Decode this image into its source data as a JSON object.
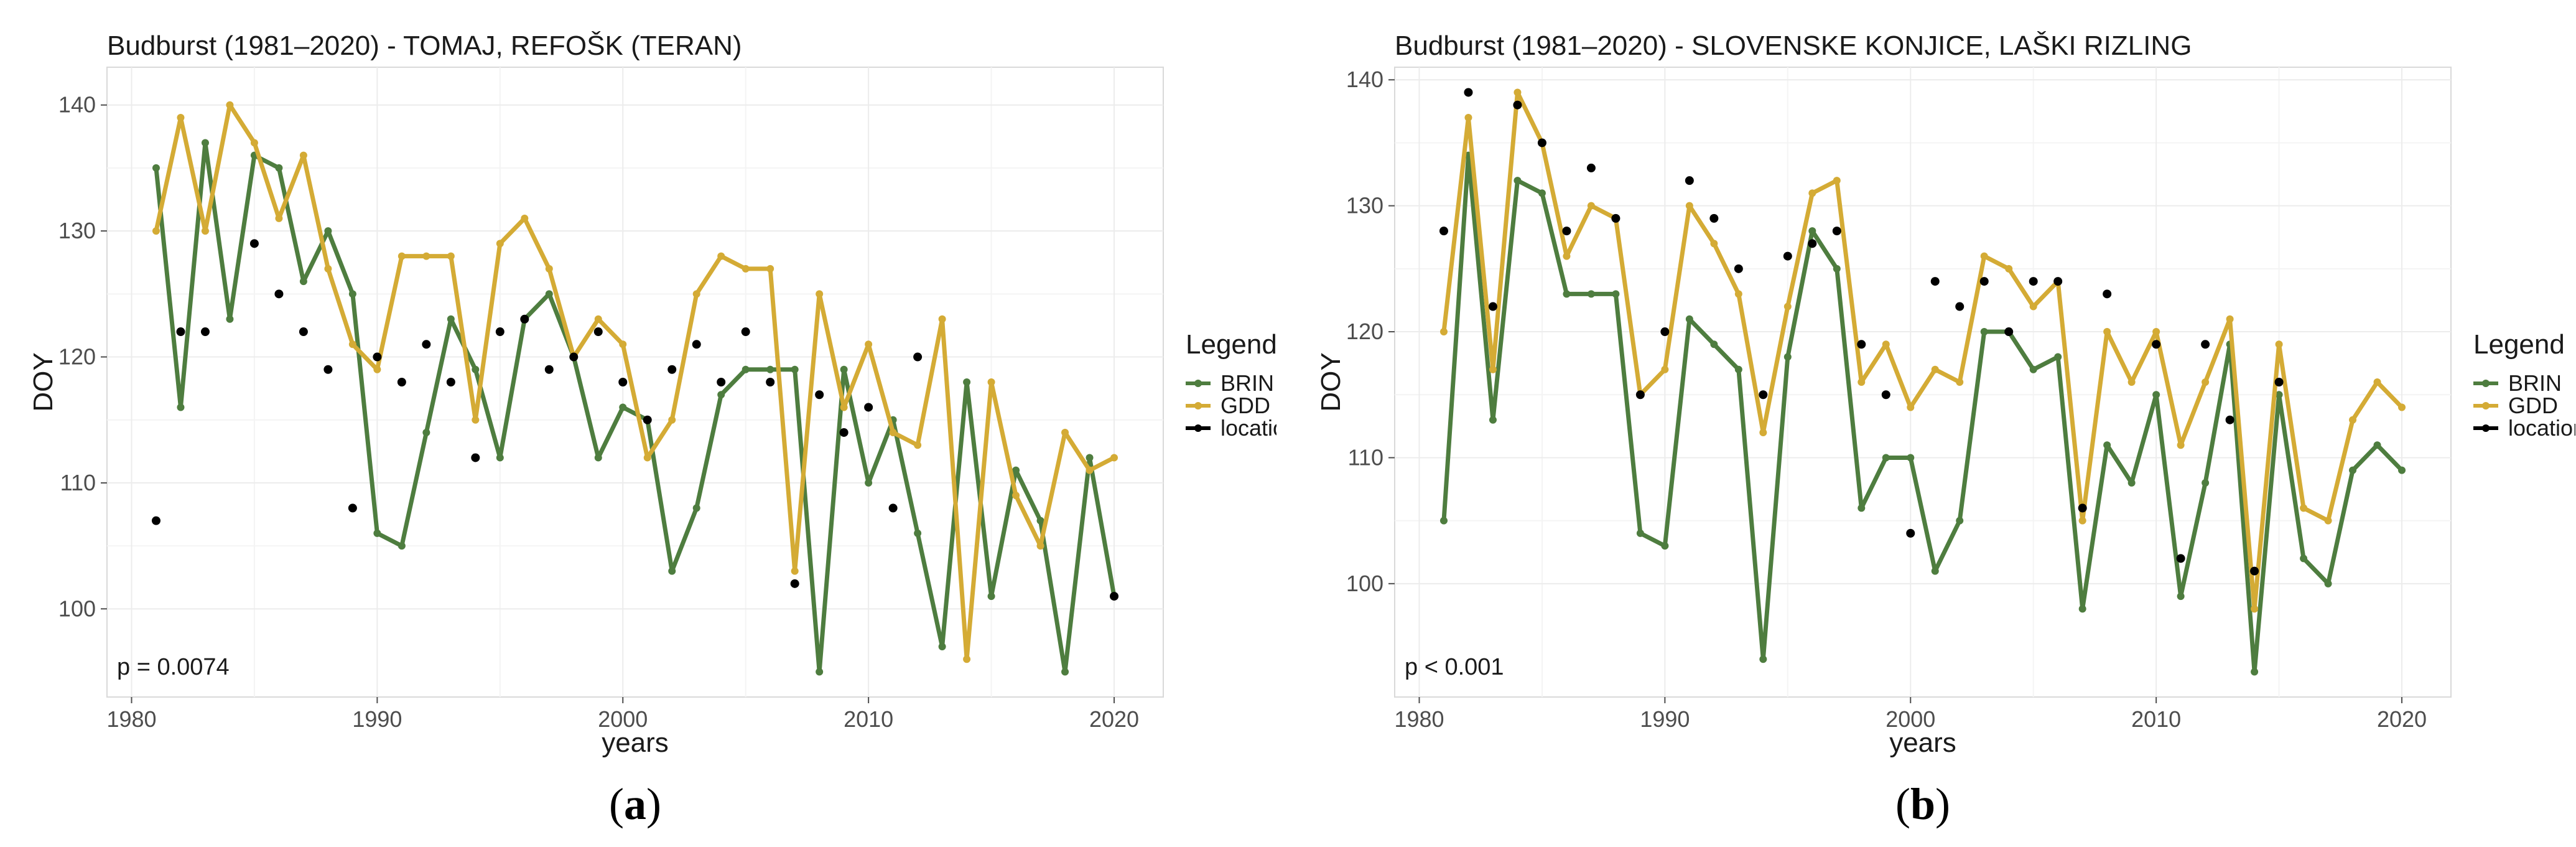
{
  "colors": {
    "brin": "#4e7d3f",
    "gdd": "#d4ab35",
    "location": "#000000",
    "grid": "#ececec",
    "frame": "#d9d9d9"
  },
  "chart_data": [
    {
      "type": "line",
      "panel_label": "a",
      "title": "Budburst (1981–2020) - TOMAJ, REFOŠK (TERAN)",
      "xlabel": "years",
      "ylabel": "DOY",
      "xlim": [
        1979,
        2022
      ],
      "ylim": [
        93,
        143
      ],
      "xticks": [
        1980,
        1990,
        2000,
        2010,
        2020
      ],
      "yticks": [
        100,
        110,
        120,
        130,
        140
      ],
      "annotation": "p = 0.0074",
      "legend_title": "Legend",
      "legend_position": "right",
      "grid": true,
      "x": [
        1981,
        1982,
        1983,
        1984,
        1985,
        1986,
        1987,
        1988,
        1989,
        1990,
        1991,
        1992,
        1993,
        1994,
        1995,
        1996,
        1997,
        1998,
        1999,
        2000,
        2001,
        2002,
        2003,
        2004,
        2005,
        2006,
        2007,
        2008,
        2009,
        2010,
        2011,
        2012,
        2013,
        2014,
        2015,
        2016,
        2017,
        2018,
        2019,
        2020
      ],
      "series": [
        {
          "name": "BRIN",
          "style": "line",
          "values": [
            135,
            116,
            137,
            123,
            136,
            135,
            126,
            130,
            125,
            106,
            105,
            114,
            123,
            119,
            112,
            123,
            125,
            120,
            112,
            116,
            115,
            103,
            108,
            117,
            119,
            119,
            119,
            95,
            119,
            110,
            115,
            106,
            97,
            118,
            101,
            111,
            107,
            95,
            112,
            101
          ]
        },
        {
          "name": "GDD",
          "style": "line",
          "values": [
            130,
            139,
            130,
            140,
            137,
            131,
            136,
            127,
            121,
            119,
            128,
            128,
            128,
            115,
            129,
            131,
            127,
            120,
            123,
            121,
            112,
            115,
            125,
            128,
            127,
            127,
            103,
            125,
            116,
            121,
            114,
            113,
            123,
            96,
            118,
            109,
            105,
            114,
            111,
            112
          ]
        },
        {
          "name": "location",
          "style": "points",
          "values": [
            107,
            122,
            122,
            null,
            129,
            125,
            122,
            119,
            108,
            120,
            118,
            121,
            118,
            112,
            122,
            123,
            119,
            120,
            122,
            118,
            115,
            119,
            121,
            118,
            122,
            118,
            102,
            117,
            114,
            116,
            108,
            120,
            null,
            null,
            null,
            null,
            null,
            null,
            null,
            101
          ]
        }
      ]
    },
    {
      "type": "line",
      "panel_label": "b",
      "title": "Budburst (1981–2020) - SLOVENSKE KONJICE, LAŠKI RIZLING",
      "xlabel": "years",
      "ylabel": "DOY",
      "xlim": [
        1979,
        2022
      ],
      "ylim": [
        91,
        141
      ],
      "xticks": [
        1980,
        1990,
        2000,
        2010,
        2020
      ],
      "yticks": [
        100,
        110,
        120,
        130,
        140
      ],
      "annotation": "p < 0.001",
      "legend_title": "Legend",
      "legend_position": "right",
      "grid": true,
      "x": [
        1981,
        1982,
        1983,
        1984,
        1985,
        1986,
        1987,
        1988,
        1989,
        1990,
        1991,
        1992,
        1993,
        1994,
        1995,
        1996,
        1997,
        1998,
        1999,
        2000,
        2001,
        2002,
        2003,
        2004,
        2005,
        2006,
        2007,
        2008,
        2009,
        2010,
        2011,
        2012,
        2013,
        2014,
        2015,
        2016,
        2017,
        2018,
        2019,
        2020
      ],
      "series": [
        {
          "name": "BRIN",
          "style": "line",
          "values": [
            105,
            134,
            113,
            132,
            131,
            123,
            123,
            123,
            104,
            103,
            121,
            119,
            117,
            94,
            118,
            128,
            125,
            106,
            110,
            110,
            101,
            105,
            120,
            120,
            117,
            118,
            98,
            111,
            108,
            115,
            99,
            108,
            119,
            93,
            115,
            102,
            100,
            109,
            111,
            109
          ]
        },
        {
          "name": "GDD",
          "style": "line",
          "values": [
            120,
            137,
            117,
            139,
            135,
            126,
            130,
            129,
            115,
            117,
            130,
            127,
            123,
            112,
            122,
            131,
            132,
            116,
            119,
            114,
            117,
            116,
            126,
            125,
            122,
            124,
            105,
            120,
            116,
            120,
            111,
            116,
            121,
            98,
            119,
            106,
            105,
            113,
            116,
            114
          ]
        },
        {
          "name": "location",
          "style": "points",
          "values": [
            128,
            139,
            122,
            138,
            135,
            128,
            133,
            129,
            115,
            120,
            132,
            129,
            125,
            115,
            126,
            127,
            128,
            119,
            115,
            104,
            124,
            122,
            124,
            120,
            124,
            124,
            106,
            123,
            null,
            119,
            102,
            119,
            113,
            101,
            116,
            null,
            null,
            null,
            null,
            null
          ]
        }
      ]
    }
  ]
}
